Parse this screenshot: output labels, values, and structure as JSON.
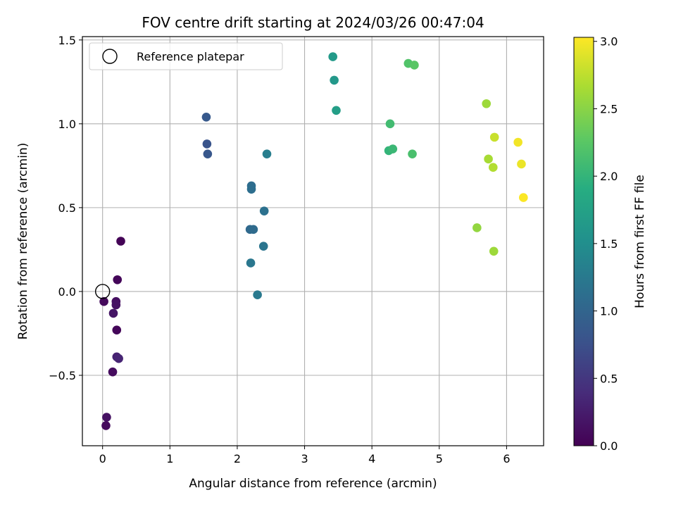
{
  "chart_data": {
    "type": "scatter",
    "title": "FOV centre drift starting at 2024/03/26 00:47:04",
    "xlabel": "Angular distance from reference (arcmin)",
    "ylabel": "Rotation from reference (arcmin)",
    "xlim": [
      -0.3,
      6.55
    ],
    "ylim": [
      -0.92,
      1.52
    ],
    "xticks": [
      0,
      1,
      2,
      3,
      4,
      5,
      6
    ],
    "yticks": [
      -0.5,
      0.0,
      0.5,
      1.0,
      1.5
    ],
    "xtick_labels": [
      "0",
      "1",
      "2",
      "3",
      "4",
      "5",
      "6"
    ],
    "ytick_labels": [
      "−0.5",
      "0.0",
      "0.5",
      "1.0",
      "1.5"
    ],
    "grid": true,
    "colormap": "viridis",
    "colorbar": {
      "label": "Hours from first FF file",
      "range": [
        0.0,
        3.03
      ],
      "ticks": [
        0.0,
        0.5,
        1.0,
        1.5,
        2.0,
        2.5,
        3.0
      ],
      "tick_labels": [
        "0.0",
        "0.5",
        "1.0",
        "1.5",
        "2.0",
        "2.5",
        "3.0"
      ]
    },
    "legend": {
      "placement": "top-left",
      "entries": [
        {
          "label": "Reference platepar",
          "marker": "open-circle"
        }
      ]
    },
    "reference_point": {
      "x": 0.0,
      "y": 0.0
    },
    "points": [
      {
        "x": 0.27,
        "y": 0.3,
        "hours": 0.02
      },
      {
        "x": 0.22,
        "y": 0.07,
        "hours": 0.05
      },
      {
        "x": 0.02,
        "y": -0.06,
        "hours": 0.08
      },
      {
        "x": 0.2,
        "y": -0.06,
        "hours": 0.12
      },
      {
        "x": 0.2,
        "y": -0.08,
        "hours": 0.15
      },
      {
        "x": 0.16,
        "y": -0.13,
        "hours": 0.18
      },
      {
        "x": 0.21,
        "y": -0.23,
        "hours": 0.05
      },
      {
        "x": 0.21,
        "y": -0.39,
        "hours": 0.3
      },
      {
        "x": 0.24,
        "y": -0.4,
        "hours": 0.33
      },
      {
        "x": 0.15,
        "y": -0.48,
        "hours": 0.1
      },
      {
        "x": 0.06,
        "y": -0.75,
        "hours": 0.15
      },
      {
        "x": 0.05,
        "y": -0.8,
        "hours": 0.08
      },
      {
        "x": 1.54,
        "y": 1.04,
        "hours": 0.85
      },
      {
        "x": 1.55,
        "y": 0.88,
        "hours": 0.8
      },
      {
        "x": 1.56,
        "y": 0.82,
        "hours": 0.83
      },
      {
        "x": 2.44,
        "y": 0.82,
        "hours": 1.3
      },
      {
        "x": 2.21,
        "y": 0.63,
        "hours": 1.1
      },
      {
        "x": 2.21,
        "y": 0.61,
        "hours": 1.12
      },
      {
        "x": 2.4,
        "y": 0.48,
        "hours": 1.15
      },
      {
        "x": 2.19,
        "y": 0.37,
        "hours": 1.05
      },
      {
        "x": 2.24,
        "y": 0.37,
        "hours": 1.08
      },
      {
        "x": 2.39,
        "y": 0.27,
        "hours": 1.2
      },
      {
        "x": 2.2,
        "y": 0.17,
        "hours": 1.22
      },
      {
        "x": 2.3,
        "y": -0.02,
        "hours": 1.25
      },
      {
        "x": 3.42,
        "y": 1.4,
        "hours": 1.65
      },
      {
        "x": 3.44,
        "y": 1.26,
        "hours": 1.62
      },
      {
        "x": 3.47,
        "y": 1.08,
        "hours": 1.7
      },
      {
        "x": 4.54,
        "y": 1.36,
        "hours": 2.2
      },
      {
        "x": 4.63,
        "y": 1.35,
        "hours": 2.25
      },
      {
        "x": 4.27,
        "y": 1.0,
        "hours": 2.1
      },
      {
        "x": 4.25,
        "y": 0.84,
        "hours": 2.0
      },
      {
        "x": 4.31,
        "y": 0.85,
        "hours": 2.05
      },
      {
        "x": 4.6,
        "y": 0.82,
        "hours": 2.15
      },
      {
        "x": 5.7,
        "y": 1.12,
        "hours": 2.6
      },
      {
        "x": 5.82,
        "y": 0.92,
        "hours": 2.8
      },
      {
        "x": 5.73,
        "y": 0.79,
        "hours": 2.65
      },
      {
        "x": 5.8,
        "y": 0.74,
        "hours": 2.7
      },
      {
        "x": 6.17,
        "y": 0.89,
        "hours": 2.98
      },
      {
        "x": 6.22,
        "y": 0.76,
        "hours": 2.95
      },
      {
        "x": 6.25,
        "y": 0.56,
        "hours": 3.02
      },
      {
        "x": 5.56,
        "y": 0.38,
        "hours": 2.55
      },
      {
        "x": 5.81,
        "y": 0.24,
        "hours": 2.6
      }
    ]
  }
}
